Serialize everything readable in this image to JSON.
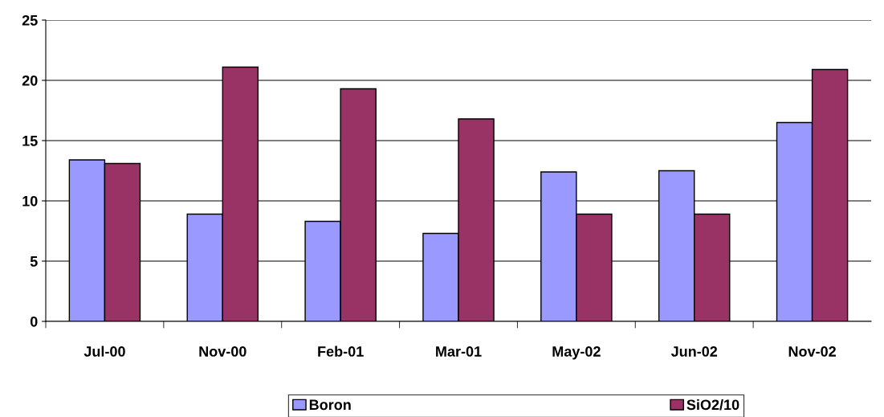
{
  "chart_data": {
    "type": "bar",
    "categories": [
      "Jul-00",
      "Nov-00",
      "Feb-01",
      "Mar-01",
      "May-02",
      "Jun-02",
      "Nov-02"
    ],
    "series": [
      {
        "name": "Boron",
        "color": "#9999ff",
        "values": [
          13.4,
          8.9,
          8.3,
          7.3,
          12.4,
          12.5,
          16.5
        ]
      },
      {
        "name": "SiO2/10",
        "color": "#993366",
        "values": [
          13.1,
          21.1,
          19.3,
          16.8,
          8.9,
          8.9,
          20.9
        ]
      }
    ],
    "ylim": [
      0,
      25
    ],
    "yticks": [
      0,
      5,
      10,
      15,
      20,
      25
    ],
    "grid": "y",
    "legend": "bottom"
  }
}
